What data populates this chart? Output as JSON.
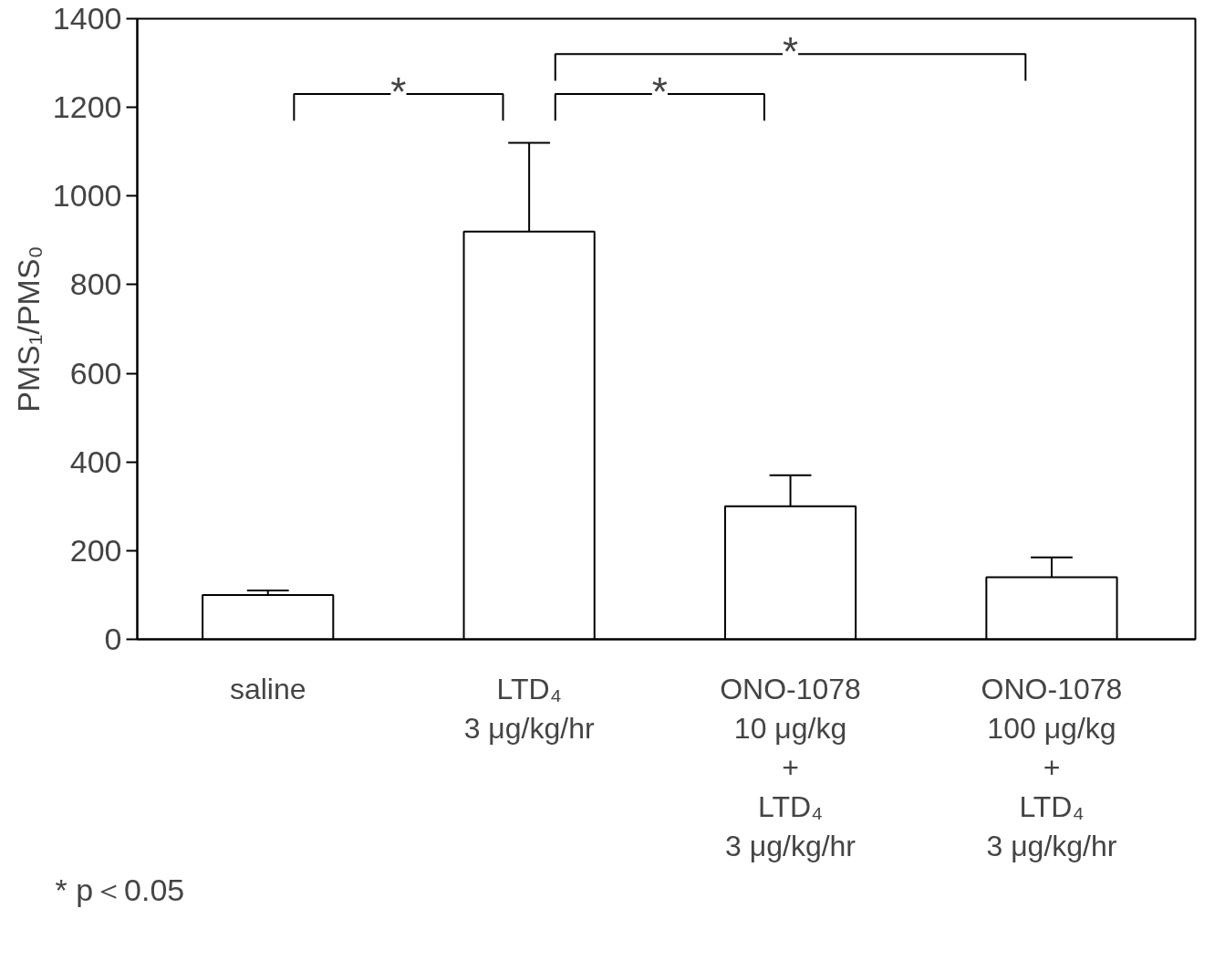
{
  "chart_data": {
    "type": "bar",
    "ylabel": "PMS₁/PMS₀",
    "categories": [
      "saline",
      "LTD₄\n3 μg/kg/hr",
      "ONO-1078\n10 μg/kg\n+\nLTD₄\n3 μg/kg/hr",
      "ONO-1078\n100 μg/kg\n+\nLTD₄\n3 μg/kg/hr"
    ],
    "values": [
      100,
      920,
      300,
      140
    ],
    "errors": [
      [
        100,
        110
      ],
      [
        920,
        1120
      ],
      [
        300,
        370
      ],
      [
        140,
        185
      ]
    ],
    "color": "#ffffff",
    "ylim": [
      0,
      1400
    ],
    "yticks": [
      0,
      200,
      400,
      600,
      800,
      1000,
      1200,
      1400
    ],
    "grid": false,
    "annotations": [
      "*",
      "*",
      "*",
      "* p＜0.05"
    ]
  }
}
